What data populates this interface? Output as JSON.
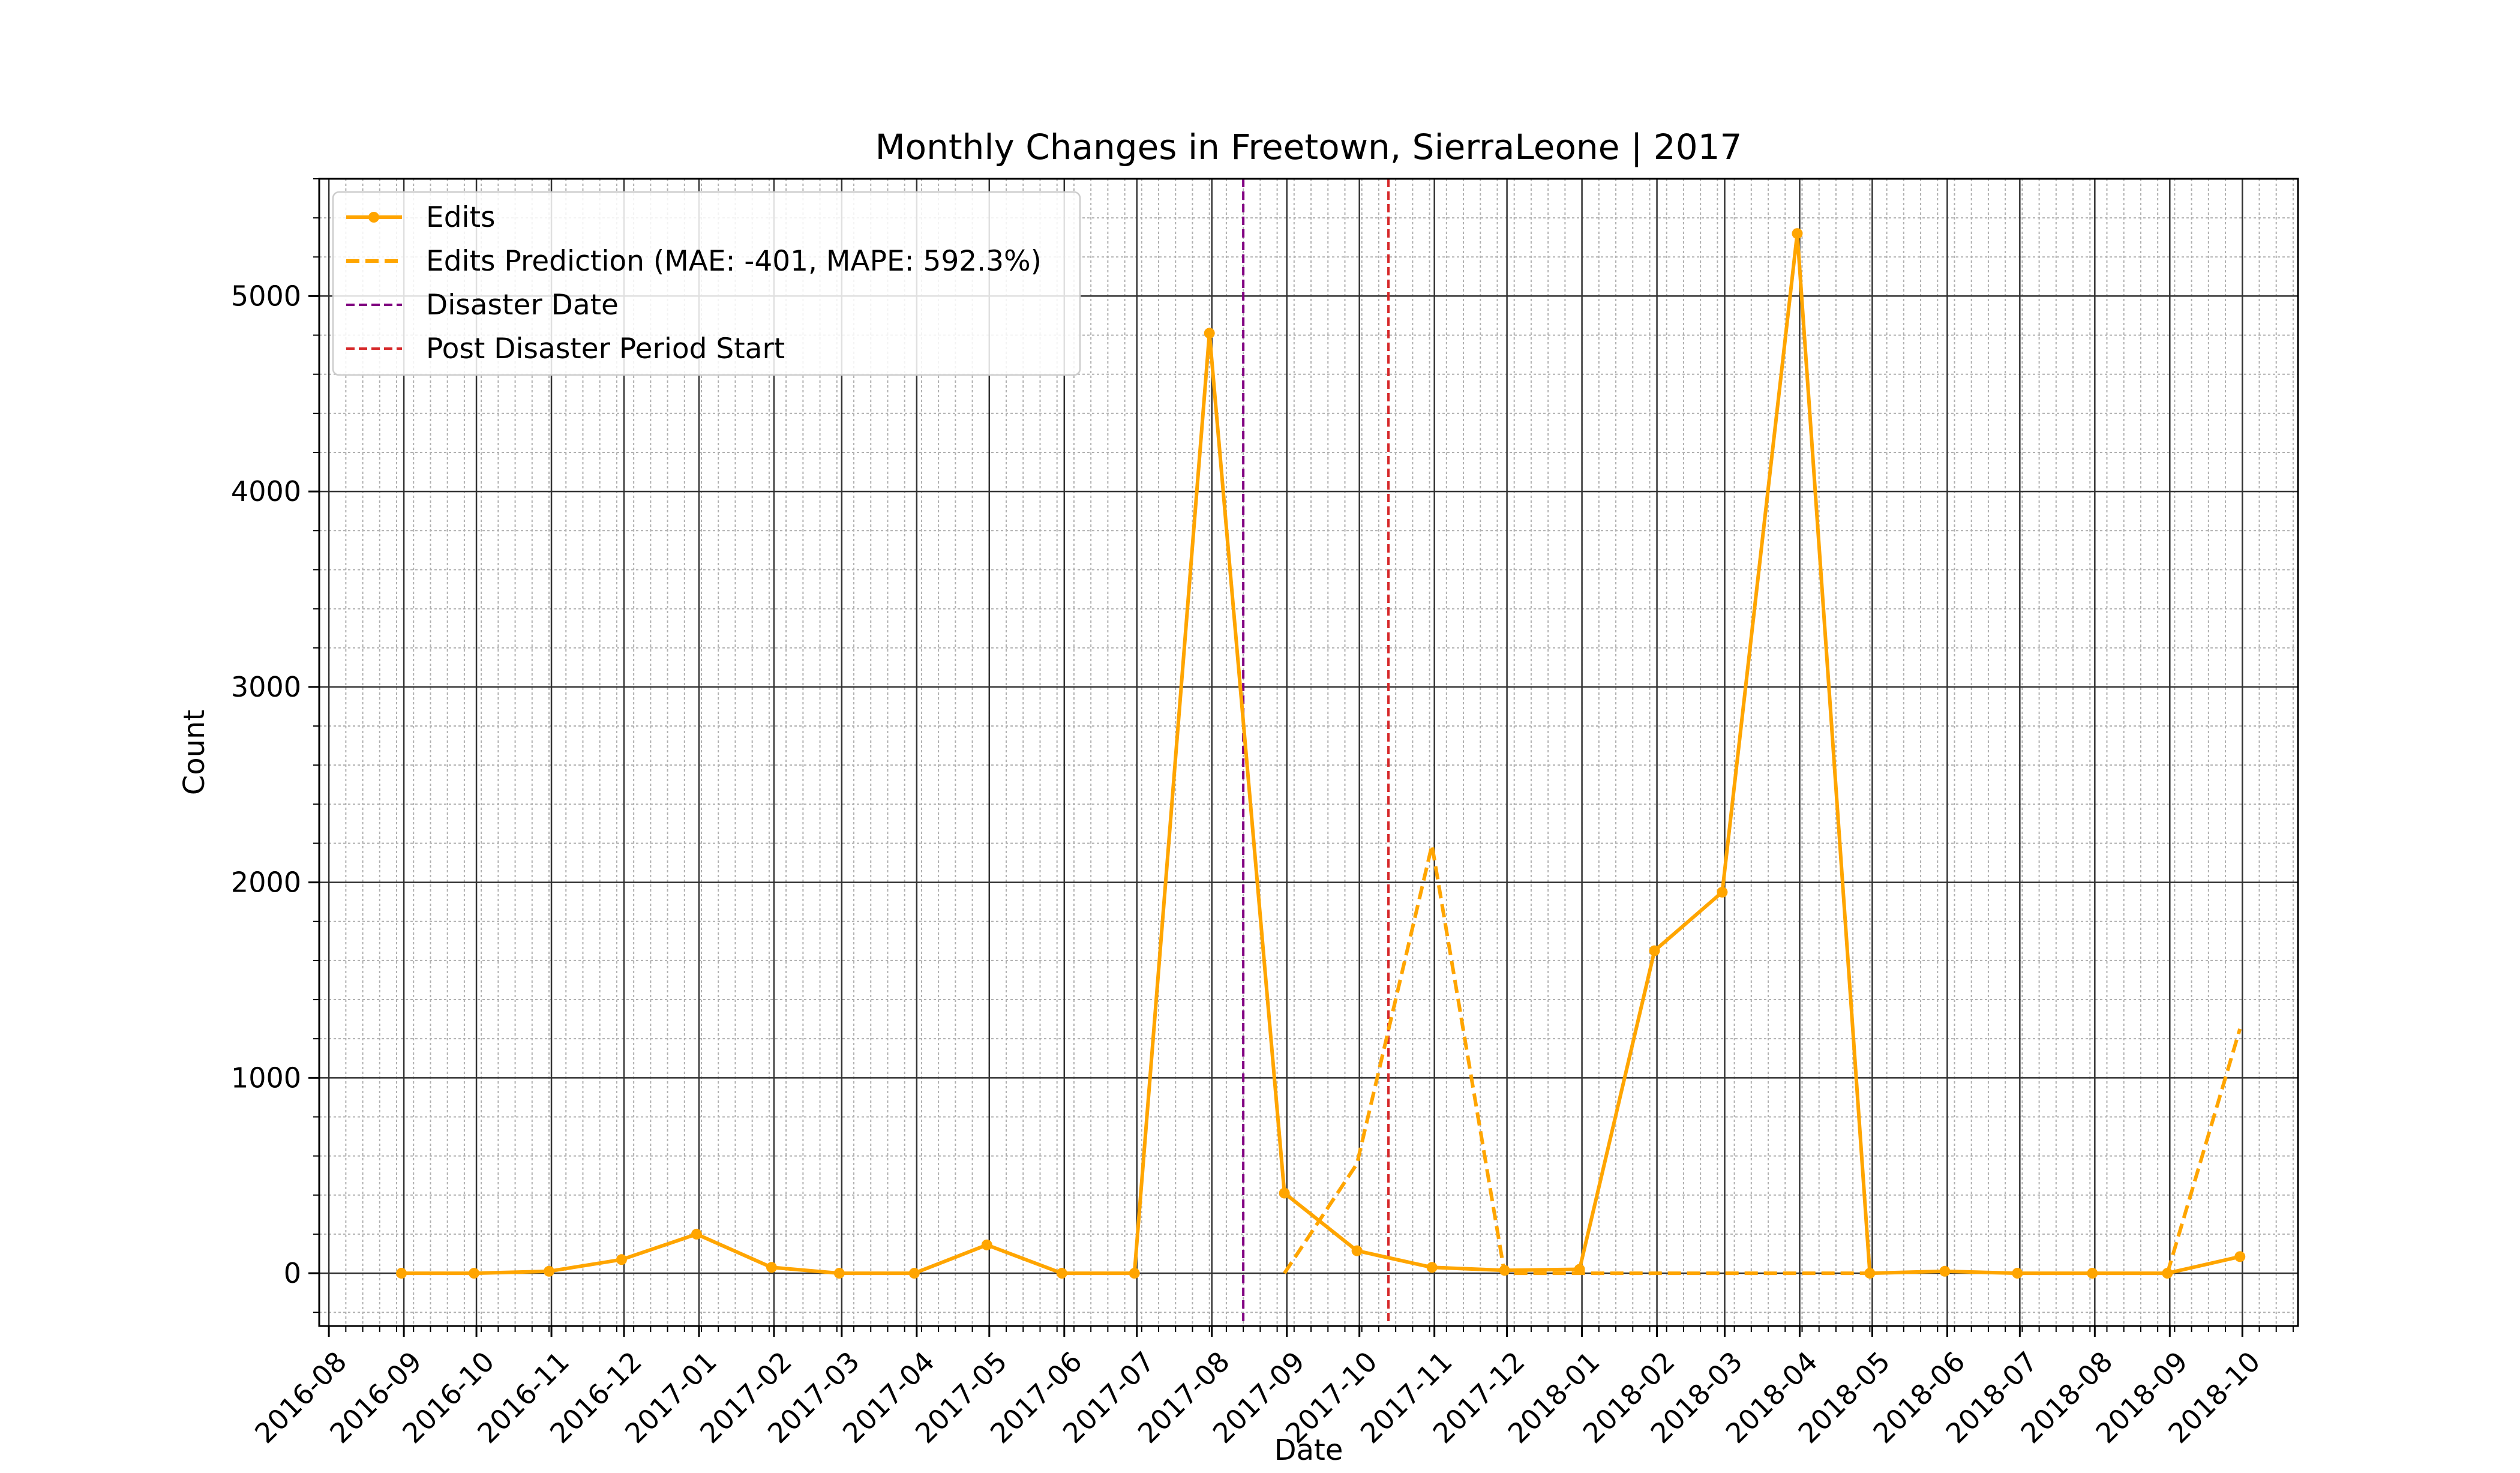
{
  "chart_data": {
    "type": "line",
    "title": "Monthly Changes in Freetown, SierraLeone | 2017",
    "xlabel": "Date",
    "ylabel": "Count",
    "xlim": [
      "2016-07-28",
      "2018-10-24"
    ],
    "ylim": [
      -270,
      5600
    ],
    "y_ticks": [
      0,
      1000,
      2000,
      3000,
      4000,
      5000
    ],
    "x_ticks": [
      "2016-08",
      "2016-09",
      "2016-10",
      "2016-11",
      "2016-12",
      "2017-01",
      "2017-02",
      "2017-03",
      "2017-04",
      "2017-05",
      "2017-06",
      "2017-07",
      "2017-08",
      "2017-09",
      "2017-10",
      "2017-11",
      "2017-12",
      "2018-01",
      "2018-02",
      "2018-03",
      "2018-04",
      "2018-05",
      "2018-06",
      "2018-07",
      "2018-08",
      "2018-09",
      "2018-10"
    ],
    "grid": true,
    "legend_position": "top-left",
    "series": [
      {
        "name": "Edits",
        "color": "#ffa500",
        "style": "solid-markers",
        "points": [
          [
            "2016-08-31",
            0
          ],
          [
            "2016-09-30",
            0
          ],
          [
            "2016-10-31",
            10
          ],
          [
            "2016-11-30",
            70
          ],
          [
            "2016-12-31",
            200
          ],
          [
            "2017-01-31",
            30
          ],
          [
            "2017-02-28",
            0
          ],
          [
            "2017-03-31",
            0
          ],
          [
            "2017-04-30",
            145
          ],
          [
            "2017-05-31",
            0
          ],
          [
            "2017-06-30",
            0
          ],
          [
            "2017-07-31",
            4810
          ],
          [
            "2017-08-31",
            410
          ],
          [
            "2017-09-30",
            115
          ],
          [
            "2017-10-31",
            30
          ],
          [
            "2017-11-30",
            15
          ],
          [
            "2017-12-31",
            20
          ],
          [
            "2018-01-31",
            1650
          ],
          [
            "2018-02-28",
            1950
          ],
          [
            "2018-03-31",
            5320
          ],
          [
            "2018-04-30",
            0
          ],
          [
            "2018-05-31",
            10
          ],
          [
            "2018-06-30",
            0
          ],
          [
            "2018-07-31",
            0
          ],
          [
            "2018-08-31",
            0
          ],
          [
            "2018-09-30",
            85
          ]
        ]
      },
      {
        "name": "Edits Prediction (MAE: -401, MAPE: 592.3%)",
        "color": "#ffa500",
        "style": "dashed",
        "segments": [
          [
            [
              "2017-08-31",
              0
            ],
            [
              "2017-09-30",
              560
            ],
            [
              "2017-10-31",
              2190
            ],
            [
              "2017-11-30",
              0
            ],
            [
              "2017-12-31",
              0
            ],
            [
              "2018-01-31",
              0
            ],
            [
              "2018-02-28",
              0
            ],
            [
              "2018-03-31",
              0
            ],
            [
              "2018-04-30",
              0
            ]
          ],
          [
            [
              "2018-08-31",
              0
            ],
            [
              "2018-09-30",
              1250
            ]
          ]
        ]
      }
    ],
    "vlines": [
      {
        "name": "Disaster Date",
        "date": "2017-08-14",
        "color": "#800080"
      },
      {
        "name": "Post Disaster Period Start",
        "date": "2017-10-13",
        "color": "#d62728"
      }
    ]
  }
}
